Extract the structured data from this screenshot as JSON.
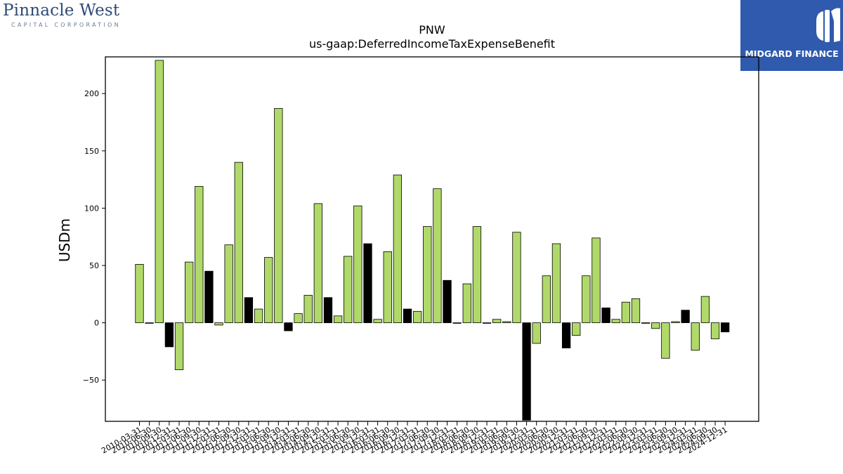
{
  "logos": {
    "left_name": "Pinnacle West",
    "left_sub": "CAPITAL CORPORATION",
    "right_name": "MIDGARD FINANCE"
  },
  "chart_data": {
    "type": "bar",
    "title": "PNW",
    "subtitle": "us-gaap:DeferredIncomeTaxExpenseBenefit",
    "xlabel": "",
    "ylabel": "USDm",
    "ylim": [
      -86,
      232
    ],
    "yticks": [
      -50,
      0,
      50,
      100,
      150,
      200
    ],
    "grid": false,
    "colors": {
      "highlight": "#000000",
      "normal": "#b0d96a",
      "edge": "#000000"
    },
    "categories": [
      "2010-03-31",
      "2010-06-30",
      "2010-09-30",
      "2010-12-31",
      "2011-03-31",
      "2011-06-30",
      "2011-09-30",
      "2011-12-31",
      "2012-03-31",
      "2012-06-30",
      "2012-09-30",
      "2012-12-31",
      "2013-03-31",
      "2013-06-30",
      "2013-09-30",
      "2013-12-31",
      "2014-03-31",
      "2014-06-30",
      "2014-09-30",
      "2014-12-31",
      "2015-03-31",
      "2015-06-30",
      "2015-09-30",
      "2015-12-31",
      "2016-03-31",
      "2016-06-30",
      "2016-09-30",
      "2016-12-31",
      "2017-03-31",
      "2017-06-30",
      "2017-09-30",
      "2017-12-31",
      "2018-03-31",
      "2018-06-30",
      "2018-09-30",
      "2018-12-31",
      "2019-03-31",
      "2019-06-30",
      "2019-09-30",
      "2019-12-31",
      "2020-03-31",
      "2020-06-30",
      "2020-09-30",
      "2020-12-31",
      "2021-03-31",
      "2021-06-30",
      "2021-09-30",
      "2021-12-31",
      "2022-03-31",
      "2022-06-30",
      "2022-09-30",
      "2022-12-31",
      "2023-03-31",
      "2023-06-30",
      "2023-09-30",
      "2023-12-31",
      "2024-03-31",
      "2024-06-30",
      "2024-09-30",
      "2024-12-31"
    ],
    "values": [
      51,
      0,
      229,
      -21,
      -41,
      53,
      119,
      45,
      -2,
      68,
      140,
      22,
      12,
      57,
      187,
      -7,
      8,
      24,
      104,
      22,
      6,
      58,
      102,
      69,
      3,
      62,
      129,
      12,
      10,
      84,
      117,
      37,
      0,
      34,
      84,
      0,
      3,
      1,
      79,
      -85,
      -18,
      41,
      69,
      -22,
      -11,
      41,
      74,
      13,
      3,
      18,
      21,
      0,
      -5,
      -31,
      1,
      11,
      -24,
      23,
      -14,
      -8
    ],
    "highlight": [
      false,
      false,
      false,
      true,
      false,
      false,
      false,
      true,
      false,
      false,
      false,
      true,
      false,
      false,
      false,
      true,
      false,
      false,
      false,
      true,
      false,
      false,
      false,
      true,
      false,
      false,
      false,
      true,
      false,
      false,
      false,
      true,
      false,
      false,
      false,
      true,
      false,
      false,
      false,
      true,
      false,
      false,
      false,
      true,
      false,
      false,
      false,
      true,
      false,
      false,
      false,
      true,
      false,
      false,
      false,
      true,
      false,
      false,
      false,
      true
    ]
  }
}
